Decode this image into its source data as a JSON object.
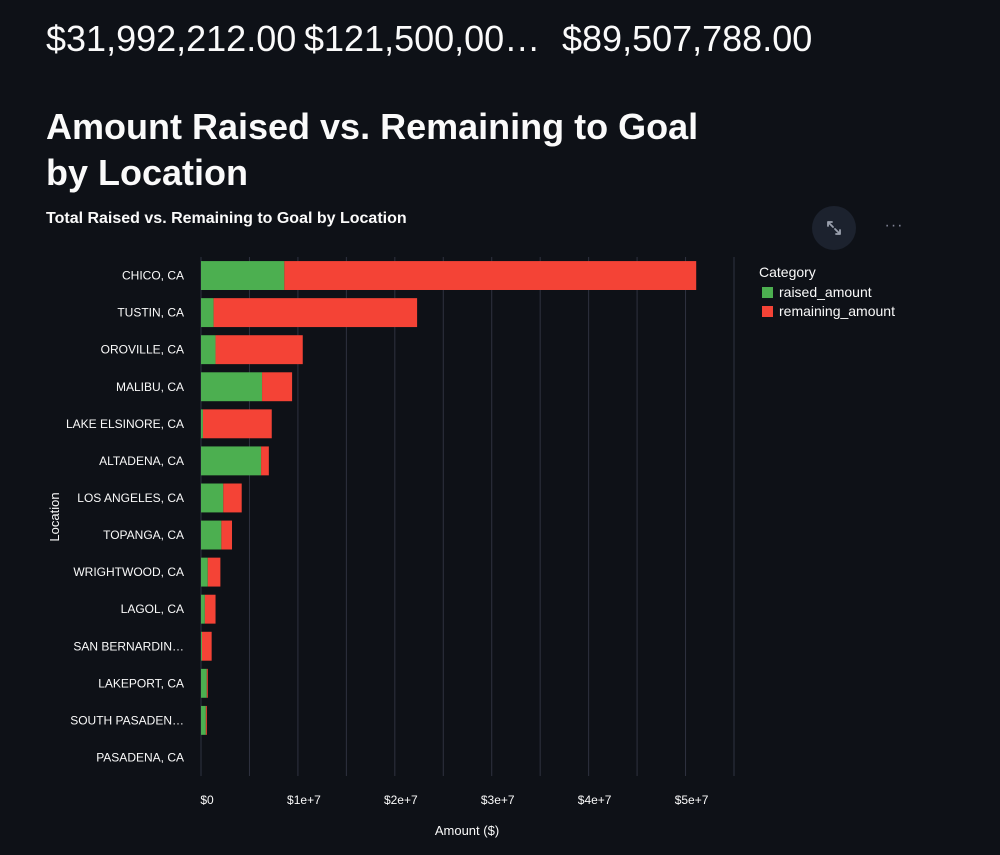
{
  "metrics": [
    {
      "value": "$31,992,212.00"
    },
    {
      "value": "$121,500,00…"
    },
    {
      "value": "$89,507,788.00"
    }
  ],
  "heading": "Amount Raised vs. Remaining to Goal by Location",
  "toolbar": {
    "fullscreen_icon": "expand-icon",
    "more_icon": "more-dots-icon",
    "more_label": "···"
  },
  "colors": {
    "raised": "#4caf50",
    "remaining": "#f44336",
    "grid": "#2f3240",
    "text": "#fafafa",
    "background": "#0e1117"
  },
  "chart_data": {
    "type": "bar",
    "orientation": "horizontal",
    "stacked": true,
    "title": "Total Raised vs. Remaining to Goal by Location",
    "xlabel": "Amount ($)",
    "ylabel": "Location",
    "xlim": [
      0,
      55000000
    ],
    "x_ticks": [
      0,
      10000000,
      20000000,
      30000000,
      40000000,
      50000000
    ],
    "x_tick_labels": [
      "$0",
      "$1e+7",
      "$2e+7",
      "$3e+7",
      "$4e+7",
      "$5e+7"
    ],
    "grid": true,
    "legend": {
      "title": "Category",
      "placement": "right"
    },
    "categories": [
      "CHICO, CA",
      "TUSTIN, CA",
      "OROVILLE, CA",
      "MALIBU, CA",
      "LAKE ELSINORE, CA",
      "ALTADENA, CA",
      "LOS ANGELES, CA",
      "TOPANGA, CA",
      "WRIGHTWOOD, CA",
      "LAGOL, CA",
      "SAN BERNARDIN…",
      "LAKEPORT, CA",
      "SOUTH PASADEN…",
      "PASADENA, CA"
    ],
    "series": [
      {
        "name": "raised_amount",
        "values": [
          8600000,
          1300000,
          1500000,
          6300000,
          200000,
          6200000,
          2300000,
          2100000,
          700000,
          400000,
          100000,
          600000,
          500000,
          0
        ]
      },
      {
        "name": "remaining_amount",
        "values": [
          42500000,
          21000000,
          9000000,
          3100000,
          7100000,
          800000,
          1900000,
          1100000,
          1300000,
          1100000,
          1000000,
          100000,
          100000,
          0
        ]
      }
    ]
  }
}
